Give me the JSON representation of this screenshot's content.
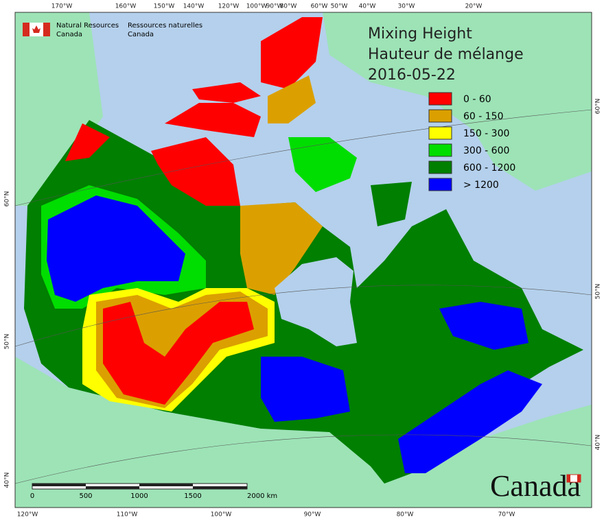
{
  "header": {
    "logo_en": [
      "Natural Resources",
      "Canada"
    ],
    "logo_fr": [
      "Ressources naturelles",
      "Canada"
    ]
  },
  "title": [
    "Mixing Height",
    "Hauteur de mélange",
    "2016-05-22"
  ],
  "legend": [
    {
      "label": "0 - 60",
      "color": "#ff0000"
    },
    {
      "label": "60 - 150",
      "color": "#dba000"
    },
    {
      "label": "150 - 300",
      "color": "#ffff00"
    },
    {
      "label": "300 - 600",
      "color": "#00dd00"
    },
    {
      "label": "600 - 1200",
      "color": "#007f00"
    },
    {
      "label": "> 1200",
      "color": "#0000ff"
    }
  ],
  "graticule": {
    "top": [
      "170°W",
      "160°W",
      "150°W",
      "140°W",
      "120°W",
      "100°W",
      "90°W",
      "80°W",
      "60°W",
      "50°W",
      "40°W",
      "30°W",
      "20°W"
    ],
    "bottom": [
      "120°W",
      "110°W",
      "100°W",
      "90°W",
      "80°W",
      "70°W"
    ],
    "left": [
      "60°N",
      "50°N",
      "40°N"
    ],
    "right": [
      "60°N",
      "50°N",
      "40°N"
    ]
  },
  "scale_bar": [
    "0",
    "500",
    "1000",
    "1500",
    "2000 km"
  ],
  "wordmark": "Canada"
}
